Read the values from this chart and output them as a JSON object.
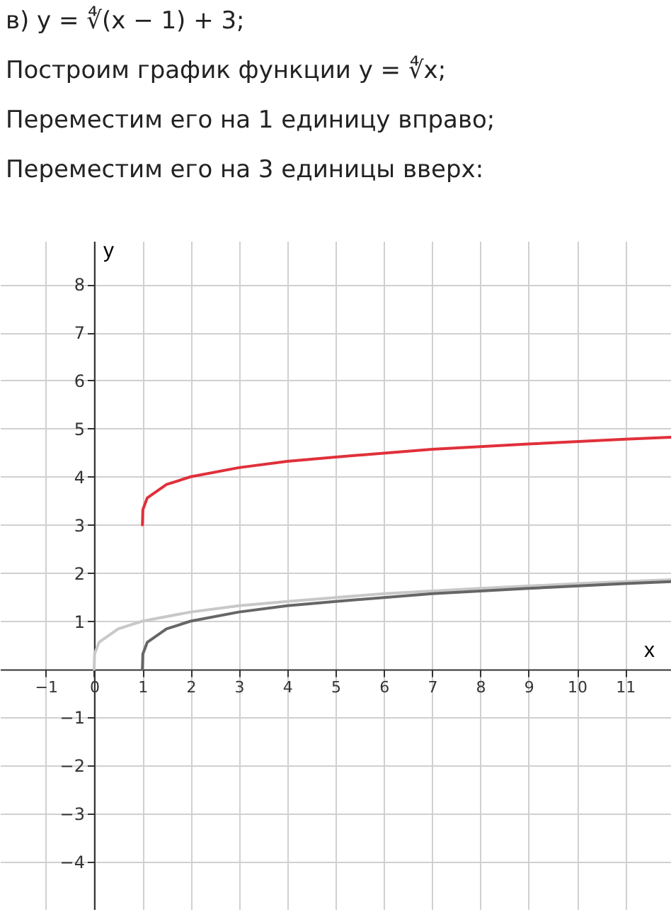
{
  "chart_data": {
    "type": "line",
    "title": "в) y = ∜(x − 1) + 3;",
    "annotations": [
      "Построим график функции y = ∜x;",
      "Переместим его на 1 единицу вправо;",
      "Переместим его на 3 единицы вверх:"
    ],
    "xlabel": "x",
    "ylabel": "y",
    "xlim": [
      -1.95,
      11.95
    ],
    "ylim": [
      -5,
      8.9
    ],
    "xticks": [
      -1,
      0,
      1,
      2,
      3,
      4,
      5,
      6,
      7,
      8,
      9,
      10,
      11
    ],
    "yticks": [
      -4,
      -3,
      -2,
      -1,
      1,
      2,
      3,
      4,
      5,
      6,
      7,
      8
    ],
    "grid": true,
    "line_style": "solid",
    "marker": "none",
    "series": [
      {
        "color": "#c8c8c8",
        "x": [
          0,
          0.01,
          0.1,
          0.5,
          1,
          2,
          3,
          4,
          6,
          8,
          10,
          11.95
        ],
        "values": [
          0,
          0.32,
          0.56,
          0.84,
          1,
          1.19,
          1.32,
          1.41,
          1.57,
          1.68,
          1.78,
          1.86
        ]
      },
      {
        "color": "#666666",
        "x": [
          1,
          1.01,
          1.1,
          1.5,
          2,
          3,
          4,
          5,
          7,
          9,
          11,
          11.95
        ],
        "values": [
          0,
          0.32,
          0.56,
          0.84,
          1,
          1.19,
          1.32,
          1.41,
          1.57,
          1.68,
          1.78,
          1.82
        ]
      },
      {
        "color": "#e0303a",
        "x": [
          1,
          1.01,
          1.1,
          1.5,
          2,
          3,
          4,
          5,
          7,
          9,
          11,
          11.95
        ],
        "values": [
          3,
          3.32,
          3.56,
          3.84,
          4,
          4.19,
          4.32,
          4.41,
          4.57,
          4.68,
          4.78,
          4.82
        ]
      }
    ]
  }
}
